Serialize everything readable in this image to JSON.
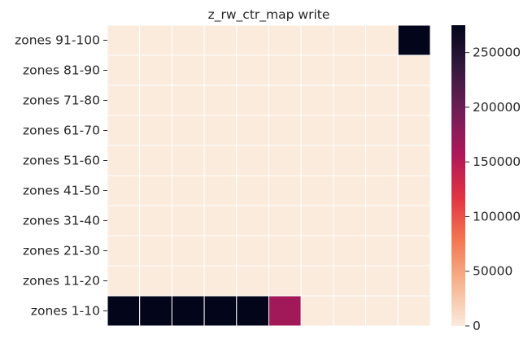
{
  "chart_data": {
    "type": "heatmap",
    "title": "z_rw_ctr_map write",
    "xlabel": "",
    "ylabel": "",
    "rows": [
      "zones 91-100",
      "zones 81-90",
      "zones 71-80",
      "zones 61-70",
      "zones 51-60",
      "zones 41-50",
      "zones 31-40",
      "zones 21-30",
      "zones 11-20",
      "zones 1-10"
    ],
    "columns": 10,
    "values": [
      [
        0,
        0,
        0,
        0,
        0,
        0,
        0,
        0,
        0,
        275000
      ],
      [
        0,
        0,
        0,
        0,
        0,
        0,
        0,
        0,
        0,
        0
      ],
      [
        0,
        0,
        0,
        0,
        0,
        0,
        0,
        0,
        0,
        0
      ],
      [
        0,
        0,
        0,
        0,
        0,
        0,
        0,
        0,
        0,
        0
      ],
      [
        0,
        0,
        0,
        0,
        0,
        0,
        0,
        0,
        0,
        0
      ],
      [
        0,
        0,
        0,
        0,
        0,
        0,
        0,
        0,
        0,
        0
      ],
      [
        0,
        0,
        0,
        0,
        0,
        0,
        0,
        0,
        0,
        0
      ],
      [
        0,
        0,
        0,
        0,
        0,
        0,
        0,
        0,
        0,
        0
      ],
      [
        0,
        0,
        0,
        0,
        0,
        0,
        0,
        0,
        0,
        0
      ],
      [
        275000,
        275000,
        275000,
        275000,
        275000,
        165000,
        0,
        0,
        0,
        0
      ]
    ],
    "colorbar": {
      "range": [
        0,
        275000
      ],
      "ticks": [
        0,
        50000,
        100000,
        150000,
        200000,
        250000
      ],
      "tick_labels": [
        "0",
        "50000",
        "100000",
        "150000",
        "200000",
        "250000"
      ],
      "colormap": [
        "#faebdd",
        "#f6b48f",
        "#f37651",
        "#e13342",
        "#ad1759",
        "#701f57",
        "#35193e",
        "#03051a"
      ]
    },
    "grid_line_color": "#ffffff"
  }
}
